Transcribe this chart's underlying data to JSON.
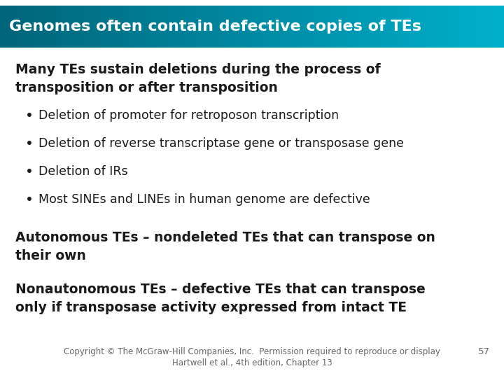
{
  "title": "Genomes often contain defective copies of TEs",
  "title_bg_color_top": "#00657a",
  "title_bg_color_bottom": "#00b0cc",
  "title_text_color": "#ffffff",
  "body_bg_color": "#ffffff",
  "body_text_color": "#1a1a1a",
  "main_paragraph1_line1": "Many TEs sustain deletions during the process of",
  "main_paragraph1_line2": "transposition or after transposition",
  "bullets": [
    "Deletion of promoter for retroposon transcription",
    "Deletion of reverse transcriptase gene or transposase gene",
    "Deletion of IRs",
    "Most SINEs and LINEs in human genome are defective"
  ],
  "main_paragraph2_line1": "Autonomous TEs – nondeleted TEs that can transpose on",
  "main_paragraph2_line2": "their own",
  "main_paragraph3_line1": "Nonautonomous TEs – defective TEs that can transpose",
  "main_paragraph3_line2": "only if transposase activity expressed from intact TE",
  "footer_line1": "Copyright © The McGraw-Hill Companies, Inc.  Permission required to reproduce or display",
  "footer_line2": "Hartwell et al., 4th edition, Chapter 13",
  "page_number": "57",
  "title_fontsize": 16,
  "body_fontsize": 13.5,
  "bullet_fontsize": 12.5,
  "footer_fontsize": 8.5
}
